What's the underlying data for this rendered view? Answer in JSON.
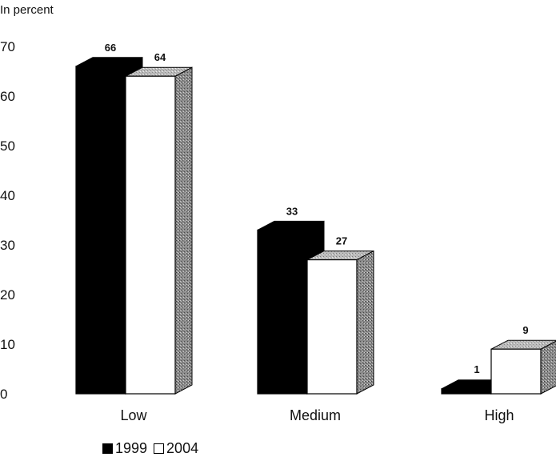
{
  "chart_data": {
    "type": "bar",
    "ylabel": "In percent",
    "ylim": [
      0,
      70
    ],
    "yticks": [
      "0",
      "10",
      "20",
      "30",
      "40",
      "50",
      "60",
      "70"
    ],
    "categories": [
      "Low",
      "Medium",
      "High"
    ],
    "series": [
      {
        "name": "1999",
        "values": [
          66,
          33,
          1
        ],
        "color": "#000000"
      },
      {
        "name": "2004",
        "values": [
          64,
          27,
          9
        ],
        "color": "#ffffff"
      }
    ],
    "grid": false,
    "legend_position": "bottom-left"
  }
}
